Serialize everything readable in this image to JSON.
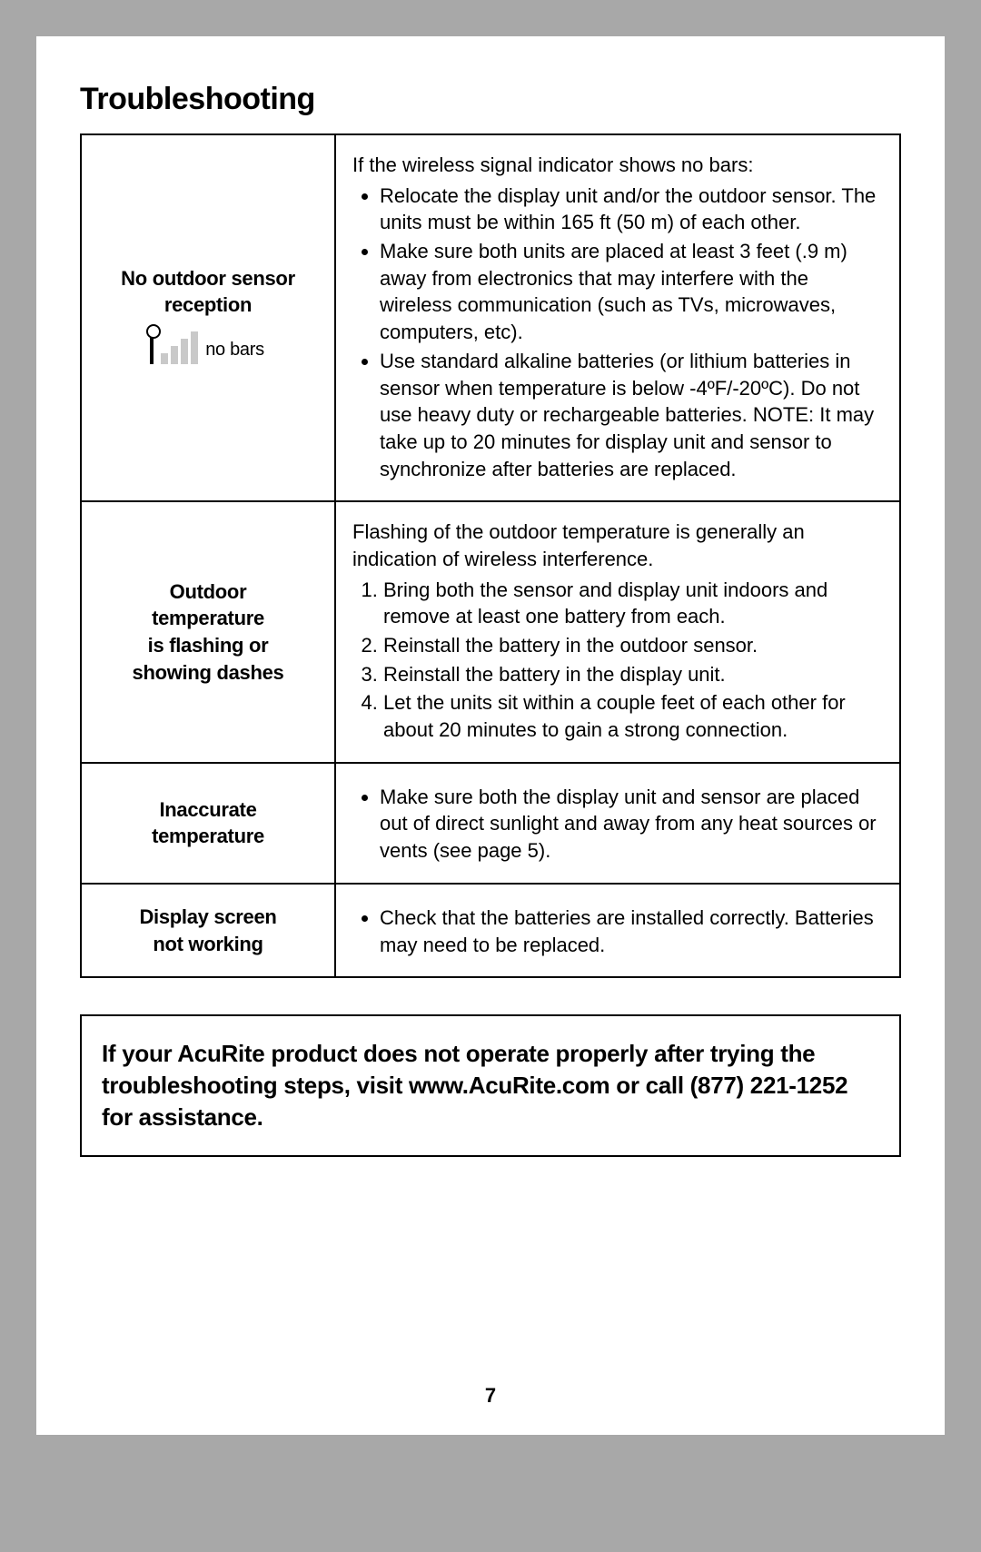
{
  "title": "Troubleshooting",
  "page_number": "7",
  "rows": [
    {
      "problem_lines": [
        "No outdoor sensor",
        "reception"
      ],
      "signal_label": "no bars",
      "intro": "If the wireless signal indicator shows no bars:",
      "bullets": [
        "Relocate the display unit and/or the outdoor sensor. The units must be within 165 ft (50 m) of each other.",
        "Make sure both units are placed at least 3 feet (.9 m) away from electronics that may interfere with the wireless communication (such as TVs, microwaves, computers, etc).",
        "Use standard alkaline batteries (or lithium batteries in sensor when temperature is below -4ºF/-20ºC). Do not use heavy duty or rechargeable batteries. NOTE: It may take up to 20 minutes for display unit and sensor to synchronize after batteries are replaced."
      ]
    },
    {
      "problem_lines": [
        "Outdoor",
        "temperature",
        "is flashing or",
        "showing dashes"
      ],
      "intro": "Flashing of the outdoor temperature is generally an indication of wireless interference.",
      "ordered": [
        "Bring both the sensor and display unit indoors and remove at least one battery from each.",
        "Reinstall the battery in the outdoor sensor.",
        "Reinstall the battery in the display unit.",
        "Let the units sit within a couple feet of each other for about 20 minutes to gain a strong connection."
      ]
    },
    {
      "problem_lines": [
        "Inaccurate",
        "temperature"
      ],
      "bullets": [
        "Make sure both the display unit and sensor are placed out of direct sunlight and away from any heat sources or vents (see page 5)."
      ]
    },
    {
      "problem_lines": [
        "Display screen",
        "not working"
      ],
      "bullets": [
        "Check that the batteries are installed correctly. Batteries may need to be replaced."
      ]
    }
  ],
  "notice": "If your AcuRite product does not operate properly after trying the troubleshooting steps, visit www.AcuRite.com or call (877) 221-1252 for assistance."
}
